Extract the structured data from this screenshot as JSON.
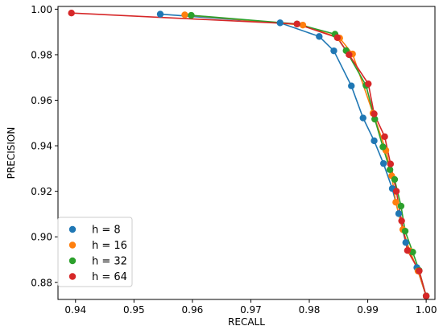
{
  "chart_data": {
    "type": "line",
    "xlabel": "RECALL",
    "ylabel": "PRECISION",
    "xlim": [
      0.937,
      1.0015
    ],
    "ylim": [
      0.8725,
      1.0012
    ],
    "xticks": [
      "0.94",
      "0.95",
      "0.96",
      "0.97",
      "0.98",
      "0.99",
      "1.00"
    ],
    "yticks": [
      "0.88",
      "0.90",
      "0.92",
      "0.94",
      "0.96",
      "0.98",
      "1.00"
    ],
    "legend_position": "lower-left",
    "grid": false,
    "series": [
      {
        "name": "h = 8",
        "color": "#1f77b4",
        "points": [
          [
            0.9545,
            0.9978
          ],
          [
            0.975,
            0.994
          ],
          [
            0.9817,
            0.988
          ],
          [
            0.9842,
            0.9817
          ],
          [
            0.9872,
            0.9663
          ],
          [
            0.9892,
            0.9522
          ],
          [
            0.9911,
            0.9422
          ],
          [
            0.9927,
            0.9322
          ],
          [
            0.9942,
            0.9212
          ],
          [
            0.9953,
            0.9102
          ],
          [
            0.9965,
            0.8975
          ],
          [
            0.9984,
            0.8865
          ],
          [
            1.0,
            0.874
          ]
        ]
      },
      {
        "name": "h = 16",
        "color": "#ff7f0e",
        "points": [
          [
            0.9587,
            0.9975
          ],
          [
            0.9789,
            0.993
          ],
          [
            0.9852,
            0.9873
          ],
          [
            0.9874,
            0.9803
          ],
          [
            0.9909,
            0.9543
          ],
          [
            0.9931,
            0.938
          ],
          [
            0.9941,
            0.9268
          ],
          [
            0.9948,
            0.9152
          ],
          [
            0.996,
            0.9032
          ],
          [
            0.9972,
            0.8938
          ],
          [
            0.9986,
            0.885
          ],
          [
            1.0,
            0.874
          ]
        ]
      },
      {
        "name": "h = 32",
        "color": "#2ca02c",
        "points": [
          [
            0.9598,
            0.9973
          ],
          [
            0.9779,
            0.9935
          ],
          [
            0.9844,
            0.989
          ],
          [
            0.9863,
            0.9818
          ],
          [
            0.9897,
            0.9665
          ],
          [
            0.9912,
            0.9517
          ],
          [
            0.9926,
            0.9395
          ],
          [
            0.9938,
            0.9295
          ],
          [
            0.9946,
            0.9252
          ],
          [
            0.9957,
            0.9135
          ],
          [
            0.9964,
            0.9025
          ],
          [
            0.9977,
            0.8933
          ],
          [
            0.9988,
            0.8852
          ],
          [
            1.0,
            0.874
          ]
        ]
      },
      {
        "name": "h = 64",
        "color": "#d62728",
        "points": [
          [
            0.9393,
            0.9983
          ],
          [
            0.9779,
            0.9935
          ],
          [
            0.9848,
            0.9875
          ],
          [
            0.9868,
            0.98
          ],
          [
            0.9901,
            0.9672
          ],
          [
            0.9911,
            0.954
          ],
          [
            0.9929,
            0.944
          ],
          [
            0.9939,
            0.932
          ],
          [
            0.9949,
            0.92
          ],
          [
            0.9958,
            0.907
          ],
          [
            0.9968,
            0.894
          ],
          [
            0.9988,
            0.885
          ],
          [
            1.0,
            0.874
          ]
        ]
      }
    ]
  }
}
